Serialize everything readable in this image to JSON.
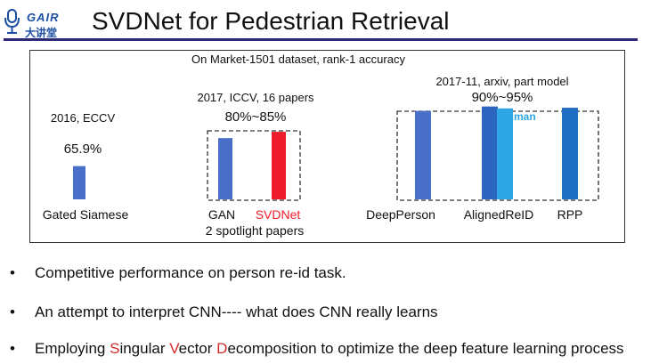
{
  "header": {
    "logo_text": "GAIR",
    "logo_sub": "大讲堂",
    "title": "SVDNet for Pedestrian Retrieval"
  },
  "chart_data": {
    "type": "bar",
    "title": "On Market-1501 dataset, rank-1 accuracy",
    "ylim": [
      50,
      100
    ],
    "groups": [
      {
        "caption": "2016, ECCV",
        "range_label": "65.9%",
        "footnote": "",
        "bars": [
          {
            "label": "Gated Siamese",
            "value": 65.9,
            "color": "#4a6fc9"
          }
        ]
      },
      {
        "caption": "2017, ICCV, 16 papers",
        "range_label": "80%~85%",
        "footnote": "2 spotlight papers",
        "bars": [
          {
            "label": "GAN",
            "value": 79.3,
            "color": "#4a6fc9"
          },
          {
            "label": "SVDNet",
            "value": 82.3,
            "color": "#ee1c2b",
            "highlight": true
          }
        ]
      },
      {
        "caption": "2017-11, arxiv, part model",
        "range_label": "90%~95%",
        "footnote": "",
        "bars": [
          {
            "label": "DeepPerson",
            "value": 92.3,
            "color": "#4a6fc9"
          },
          {
            "label": "AlignedReID",
            "value": 94.4,
            "color": "#2c66c0"
          },
          {
            "label": "human",
            "value": 93.5,
            "color": "#2fa6e6",
            "annotation": "human"
          },
          {
            "label": "RPP",
            "value": 93.8,
            "color": "#1e6ec2"
          }
        ]
      }
    ]
  },
  "bullets": [
    {
      "segments": [
        {
          "text": "Competitive performance on person re-id task.",
          "hl": false
        }
      ]
    },
    {
      "segments": [
        {
          "text": "An attempt to interpret CNN---- what does CNN really learns",
          "hl": false
        }
      ]
    },
    {
      "segments": [
        {
          "text": "Employing ",
          "hl": false
        },
        {
          "text": "S",
          "hl": true
        },
        {
          "text": "ingular ",
          "hl": false
        },
        {
          "text": "V",
          "hl": true
        },
        {
          "text": "ector ",
          "hl": false
        },
        {
          "text": "D",
          "hl": true
        },
        {
          "text": "ecomposition to optimize the deep feature learning process",
          "hl": false
        }
      ]
    }
  ],
  "bullet_marker": "•"
}
